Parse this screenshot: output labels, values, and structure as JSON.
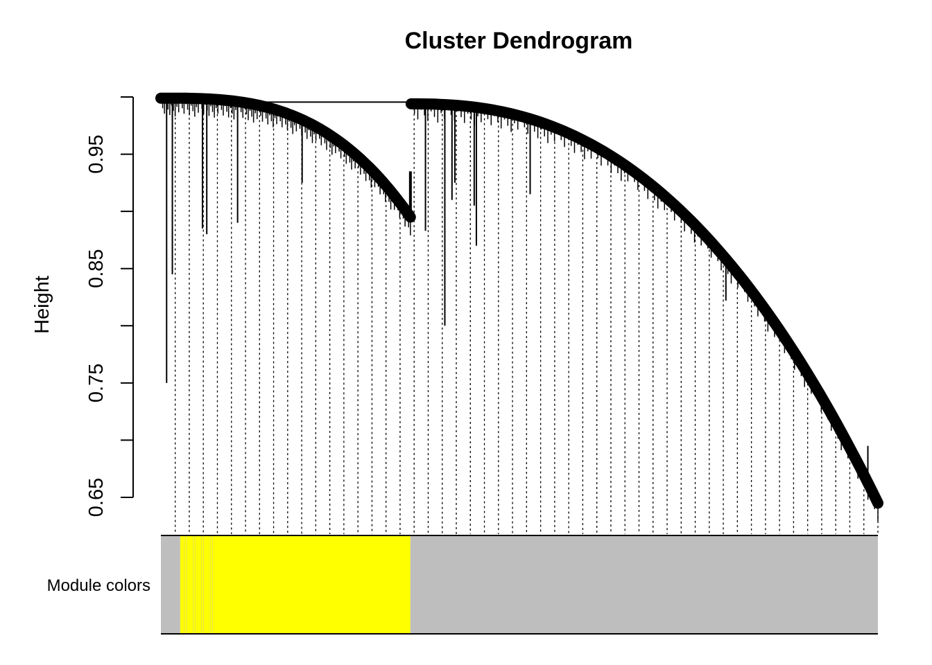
{
  "chart_data": {
    "type": "dendrogram",
    "title": "Cluster Dendrogram",
    "xlabel": "",
    "ylabel": "Height",
    "ylim": [
      0.65,
      1.0
    ],
    "y_ticks": [
      0.65,
      0.7,
      0.75,
      0.8,
      0.85,
      0.9,
      0.95,
      1.0
    ],
    "y_tick_labels": [
      "0.65",
      "",
      "0.75",
      "",
      "0.85",
      "",
      "0.95",
      ""
    ],
    "top_merge_height": 0.9955,
    "clusters": [
      {
        "name": "left branch",
        "x_range": [
          0.0,
          0.348
        ],
        "top_height": 0.999,
        "bottom_height": 0.895,
        "shape": 3.0
      },
      {
        "name": "right branch",
        "x_range": [
          0.349,
          1.0
        ],
        "top_height": 0.994,
        "bottom_height": 0.645,
        "shape": 2.4
      }
    ],
    "notable_drops": [
      {
        "x": 0.008,
        "height": 0.75
      },
      {
        "x": 0.016,
        "height": 0.845
      },
      {
        "x": 0.058,
        "height": 0.885
      },
      {
        "x": 0.064,
        "height": 0.88
      },
      {
        "x": 0.107,
        "height": 0.89
      },
      {
        "x": 0.197,
        "height": 0.925
      },
      {
        "x": 0.354,
        "height": 0.99
      },
      {
        "x": 0.369,
        "height": 0.883
      },
      {
        "x": 0.396,
        "height": 0.8
      },
      {
        "x": 0.406,
        "height": 0.91
      },
      {
        "x": 0.41,
        "height": 0.925
      },
      {
        "x": 0.437,
        "height": 0.905
      },
      {
        "x": 0.44,
        "height": 0.87
      },
      {
        "x": 0.515,
        "height": 0.915
      },
      {
        "x": 0.788,
        "height": 0.822
      },
      {
        "x": 0.986,
        "height": 0.695
      }
    ],
    "color_bar": {
      "label": "Module colors",
      "colors": {
        "yellow": "#ffff00",
        "grey": "#bebebe"
      },
      "segments": [
        {
          "color": "grey",
          "from": 0.0,
          "to": 0.026
        },
        {
          "color": "grey/yellow mix",
          "from": 0.026,
          "to": 0.072
        },
        {
          "color": "yellow",
          "from": 0.072,
          "to": 0.348
        },
        {
          "color": "grey",
          "from": 0.348,
          "to": 1.0
        }
      ]
    }
  }
}
